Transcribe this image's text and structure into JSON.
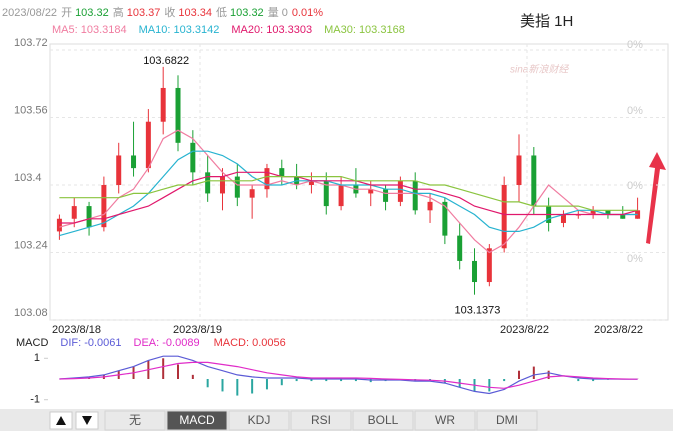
{
  "header": {
    "date": "2023/08/22",
    "fields": [
      {
        "label": "开",
        "value": "103.32",
        "color": "#1aa034"
      },
      {
        "label": "高",
        "value": "103.37",
        "color": "#e8333a"
      },
      {
        "label": "收",
        "value": "103.34",
        "color": "#e8333a"
      },
      {
        "label": "低",
        "value": "103.32",
        "color": "#1aa034"
      },
      {
        "label": "量",
        "value": "0",
        "color": "#999999"
      }
    ],
    "change": "0.01%",
    "change_color": "#e8333a"
  },
  "symbol": "美指 1H",
  "watermark": "sina新浪财经",
  "tabs": [
    "无",
    "MACD",
    "KDJ",
    "RSI",
    "BOLL",
    "WR",
    "DMI"
  ],
  "selected_tab": 1,
  "chart_data": [
    {
      "type": "candlestick",
      "up_color": "#e8333a",
      "down_color": "#1aa034",
      "ylim": [
        103.08,
        103.72
      ],
      "yticks": [
        103.72,
        103.56,
        103.4,
        103.24,
        103.08
      ],
      "grid": true,
      "right_labels": [
        "0%",
        "0%",
        "0%",
        "0%"
      ],
      "x_labels": [
        "2023/8/18",
        "2023/8/19",
        "2023/8/22",
        "2023/8/22"
      ],
      "annotations": [
        "103.6822",
        "103.1373"
      ],
      "open": [
        103.29,
        103.32,
        103.35,
        103.3,
        103.4,
        103.47,
        103.44,
        103.55,
        103.63,
        103.5,
        103.43,
        103.38,
        103.42,
        103.37,
        103.39,
        103.44,
        103.42,
        103.4,
        103.41,
        103.35,
        103.4,
        103.38,
        103.39,
        103.36,
        103.41,
        103.34,
        103.36,
        103.28,
        103.22,
        103.17,
        103.25,
        103.4,
        103.47,
        103.35,
        103.31,
        103.33,
        103.33,
        103.34,
        103.33,
        103.32
      ],
      "high": [
        103.33,
        103.37,
        103.36,
        103.42,
        103.5,
        103.55,
        103.58,
        103.68,
        103.66,
        103.53,
        103.47,
        103.44,
        103.45,
        103.4,
        103.45,
        103.46,
        103.45,
        103.43,
        103.43,
        103.42,
        103.44,
        103.41,
        103.4,
        103.42,
        103.43,
        103.38,
        103.37,
        103.31,
        103.25,
        103.26,
        103.42,
        103.52,
        103.49,
        103.37,
        103.34,
        103.34,
        103.35,
        103.34,
        103.35,
        103.37
      ],
      "low": [
        103.27,
        103.3,
        103.28,
        103.29,
        103.38,
        103.42,
        103.43,
        103.52,
        103.48,
        103.4,
        103.36,
        103.34,
        103.35,
        103.32,
        103.37,
        103.4,
        103.39,
        103.38,
        103.33,
        103.34,
        103.37,
        103.35,
        103.34,
        103.35,
        103.33,
        103.31,
        103.26,
        103.2,
        103.14,
        103.16,
        103.24,
        103.36,
        103.33,
        103.29,
        103.3,
        103.32,
        103.32,
        103.32,
        103.32,
        103.32
      ],
      "close": [
        103.32,
        103.35,
        103.3,
        103.4,
        103.47,
        103.44,
        103.55,
        103.63,
        103.5,
        103.43,
        103.38,
        103.42,
        103.37,
        103.39,
        103.44,
        103.42,
        103.4,
        103.41,
        103.35,
        103.4,
        103.38,
        103.39,
        103.36,
        103.41,
        103.34,
        103.36,
        103.28,
        103.22,
        103.17,
        103.25,
        103.4,
        103.47,
        103.35,
        103.31,
        103.33,
        103.33,
        103.34,
        103.33,
        103.32,
        103.34
      ],
      "series": [
        {
          "legend": "MA5: 103.3184",
          "color": "#f07ca0",
          "values": [
            103.3,
            103.31,
            103.32,
            103.33,
            103.37,
            103.39,
            103.44,
            103.51,
            103.53,
            103.51,
            103.47,
            103.43,
            103.4,
            103.4,
            103.4,
            103.41,
            103.4,
            103.41,
            103.4,
            103.4,
            103.39,
            103.39,
            103.38,
            103.38,
            103.38,
            103.37,
            103.35,
            103.31,
            103.27,
            103.24,
            103.26,
            103.3,
            103.35,
            103.4,
            103.37,
            103.34,
            103.33,
            103.33,
            103.33,
            103.33
          ]
        },
        {
          "legend": "MA10: 103.3142",
          "color": "#27b3d0",
          "values": [
            103.28,
            103.29,
            103.3,
            103.31,
            103.33,
            103.35,
            103.38,
            103.42,
            103.46,
            103.48,
            103.48,
            103.47,
            103.45,
            103.42,
            103.4,
            103.4,
            103.41,
            103.41,
            103.41,
            103.4,
            103.4,
            103.4,
            103.39,
            103.39,
            103.38,
            103.38,
            103.37,
            103.35,
            103.33,
            103.3,
            103.29,
            103.29,
            103.3,
            103.32,
            103.33,
            103.34,
            103.34,
            103.33,
            103.33,
            103.33
          ]
        },
        {
          "legend": "MA20: 103.3303",
          "color": "#e0186c",
          "values": [
            103.31,
            103.31,
            103.32,
            103.32,
            103.33,
            103.34,
            103.35,
            103.37,
            103.39,
            103.41,
            103.42,
            103.42,
            103.43,
            103.43,
            103.43,
            103.42,
            103.42,
            103.41,
            103.41,
            103.41,
            103.41,
            103.4,
            103.4,
            103.4,
            103.39,
            103.39,
            103.38,
            103.37,
            103.35,
            103.34,
            103.33,
            103.33,
            103.33,
            103.33,
            103.33,
            103.33,
            103.33,
            103.33,
            103.33,
            103.34
          ]
        },
        {
          "legend": "MA30: 103.3168",
          "color": "#8ac43f",
          "values": [
            103.37,
            103.37,
            103.37,
            103.37,
            103.37,
            103.38,
            103.38,
            103.39,
            103.4,
            103.4,
            103.41,
            103.41,
            103.41,
            103.41,
            103.42,
            103.42,
            103.42,
            103.42,
            103.42,
            103.42,
            103.41,
            103.41,
            103.41,
            103.41,
            103.41,
            103.4,
            103.4,
            103.39,
            103.38,
            103.37,
            103.36,
            103.36,
            103.35,
            103.35,
            103.35,
            103.35,
            103.34,
            103.34,
            103.34,
            103.34
          ]
        }
      ]
    },
    {
      "type": "macd",
      "title": "MACD",
      "ylim": [
        -1.4,
        1.4
      ],
      "yticks": [
        1,
        -1
      ],
      "up_color": "#b0303a",
      "down_color": "#2aa6a0",
      "histogram": {
        "legend": "MACD: 0.0056",
        "color": "#e8333a",
        "values": [
          0,
          0.06,
          0.1,
          0.2,
          0.4,
          0.6,
          0.9,
          1.0,
          0.7,
          0.2,
          -0.4,
          -0.6,
          -0.8,
          -0.7,
          -0.5,
          -0.3,
          -0.1,
          -0.1,
          -0.1,
          -0.1,
          -0.1,
          -0.15,
          -0.1,
          -0.06,
          -0.12,
          -0.08,
          -0.2,
          -0.4,
          -0.6,
          -0.6,
          -0.1,
          0.4,
          0.6,
          0.4,
          0,
          -0.1,
          -0.1,
          -0.04,
          -0.02,
          0.01
        ]
      },
      "series": [
        {
          "legend": "DIF: -0.0061",
          "color": "#5b5bd6",
          "values": [
            0,
            0.05,
            0.1,
            0.2,
            0.4,
            0.6,
            0.9,
            1.1,
            1.1,
            0.9,
            0.6,
            0.4,
            0.2,
            0.1,
            0.05,
            0.05,
            0.05,
            0,
            0,
            0,
            0,
            -0.05,
            -0.05,
            -0.05,
            -0.1,
            -0.1,
            -0.2,
            -0.4,
            -0.6,
            -0.7,
            -0.5,
            -0.1,
            0.2,
            0.3,
            0.15,
            0.05,
            0,
            0,
            -0.01,
            -0.01
          ]
        },
        {
          "legend": "DEA: -0.0089",
          "color": "#e02cc8",
          "values": [
            0,
            0.02,
            0.05,
            0.1,
            0.2,
            0.3,
            0.45,
            0.6,
            0.75,
            0.8,
            0.8,
            0.7,
            0.6,
            0.45,
            0.3,
            0.2,
            0.1,
            0.05,
            0.05,
            0.05,
            0.05,
            0.03,
            0,
            -0.02,
            -0.04,
            -0.06,
            -0.1,
            -0.2,
            -0.3,
            -0.4,
            -0.45,
            -0.3,
            -0.1,
            0.1,
            0.15,
            0.1,
            0.05,
            0.02,
            0,
            -0.01
          ]
        }
      ]
    }
  ]
}
